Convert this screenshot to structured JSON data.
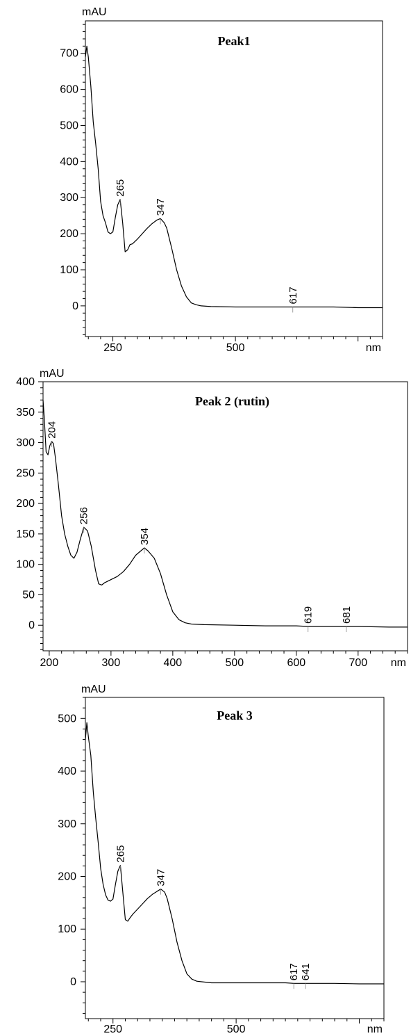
{
  "chart_data": [
    {
      "type": "line",
      "title": "Peak1",
      "ylabel": "mAU",
      "xlabel": "nm",
      "xlim": [
        194,
        800
      ],
      "ylim": [
        -85,
        790
      ],
      "x_ticks": [
        250,
        500
      ],
      "y_ticks": [
        0,
        100,
        200,
        300,
        400,
        500,
        600,
        700
      ],
      "peak_labels": [
        {
          "text": "265",
          "x": 265,
          "y": 295
        },
        {
          "text": "347",
          "x": 347,
          "y": 242
        },
        {
          "text": "617",
          "x": 617,
          "y": -3
        }
      ],
      "series": [
        {
          "x": [
            194,
            197,
            200,
            205,
            210,
            215,
            220,
            225,
            230,
            235,
            240,
            245,
            250,
            255,
            260,
            265,
            270,
            275,
            280,
            285,
            290,
            300,
            310,
            320,
            330,
            340,
            347,
            355,
            360,
            370,
            380,
            390,
            400,
            410,
            420,
            430,
            450,
            500,
            550,
            600,
            617,
            650,
            700,
            750,
            800
          ],
          "y": [
            690,
            720,
            690,
            610,
            510,
            450,
            380,
            290,
            250,
            230,
            205,
            200,
            205,
            245,
            280,
            295,
            230,
            150,
            155,
            170,
            172,
            185,
            200,
            215,
            228,
            238,
            242,
            230,
            215,
            160,
            100,
            55,
            25,
            8,
            3,
            0,
            -2,
            -3,
            -3,
            -3,
            -3,
            -3,
            -3,
            -5,
            -5
          ]
        }
      ]
    },
    {
      "type": "line",
      "title": "Peak 2 (rutin)",
      "ylabel": "mAU",
      "xlabel": "nm",
      "xlim": [
        190,
        780
      ],
      "ylim": [
        -42,
        400
      ],
      "x_ticks": [
        200,
        300,
        400,
        500,
        600,
        700
      ],
      "y_ticks": [
        0,
        50,
        100,
        150,
        200,
        250,
        300,
        350,
        400
      ],
      "peak_labels": [
        {
          "text": "204",
          "x": 204,
          "y": 302
        },
        {
          "text": "256",
          "x": 256,
          "y": 161
        },
        {
          "text": "354",
          "x": 354,
          "y": 127
        },
        {
          "text": "619",
          "x": 619,
          "y": -2
        },
        {
          "text": "681",
          "x": 681,
          "y": -2
        }
      ],
      "series": [
        {
          "x": [
            190,
            192,
            195,
            198,
            201,
            204,
            207,
            210,
            215,
            220,
            225,
            230,
            235,
            240,
            245,
            250,
            256,
            262,
            268,
            275,
            280,
            285,
            290,
            300,
            310,
            320,
            330,
            340,
            354,
            360,
            370,
            380,
            390,
            400,
            410,
            420,
            430,
            450,
            500,
            550,
            600,
            619,
            650,
            681,
            700,
            750,
            780
          ],
          "y": [
            370,
            340,
            285,
            280,
            295,
            302,
            298,
            275,
            230,
            180,
            150,
            130,
            115,
            110,
            120,
            140,
            161,
            155,
            130,
            90,
            68,
            66,
            70,
            75,
            80,
            88,
            100,
            115,
            127,
            122,
            110,
            85,
            50,
            22,
            9,
            4,
            2,
            1,
            0,
            -1,
            -1,
            -2,
            -2,
            -2,
            -2,
            -3,
            -3
          ]
        }
      ]
    },
    {
      "type": "line",
      "title": "Peak 3",
      "ylabel": "mAU",
      "xlabel": "nm",
      "xlim": [
        194,
        800
      ],
      "ylim": [
        -70,
        540
      ],
      "x_ticks": [
        250,
        500
      ],
      "y_ticks": [
        0,
        100,
        200,
        300,
        400,
        500
      ],
      "peak_labels": [
        {
          "text": "265",
          "x": 265,
          "y": 221
        },
        {
          "text": "347",
          "x": 347,
          "y": 176
        },
        {
          "text": "617",
          "x": 617,
          "y": -3
        },
        {
          "text": "641",
          "x": 641,
          "y": -3
        }
      ],
      "series": [
        {
          "x": [
            194,
            197,
            200,
            205,
            210,
            215,
            220,
            225,
            230,
            235,
            240,
            245,
            250,
            255,
            260,
            265,
            270,
            275,
            280,
            285,
            290,
            300,
            310,
            320,
            330,
            340,
            347,
            355,
            360,
            370,
            380,
            390,
            400,
            410,
            420,
            430,
            450,
            500,
            550,
            600,
            617,
            641,
            650,
            700,
            750,
            800
          ],
          "y": [
            460,
            492,
            465,
            430,
            360,
            310,
            265,
            215,
            185,
            165,
            155,
            153,
            157,
            185,
            210,
            221,
            170,
            118,
            115,
            122,
            128,
            138,
            148,
            158,
            166,
            172,
            176,
            170,
            158,
            120,
            75,
            40,
            15,
            5,
            1,
            0,
            -2,
            -2,
            -2,
            -2,
            -3,
            -3,
            -3,
            -3,
            -4,
            -4
          ]
        }
      ]
    }
  ]
}
